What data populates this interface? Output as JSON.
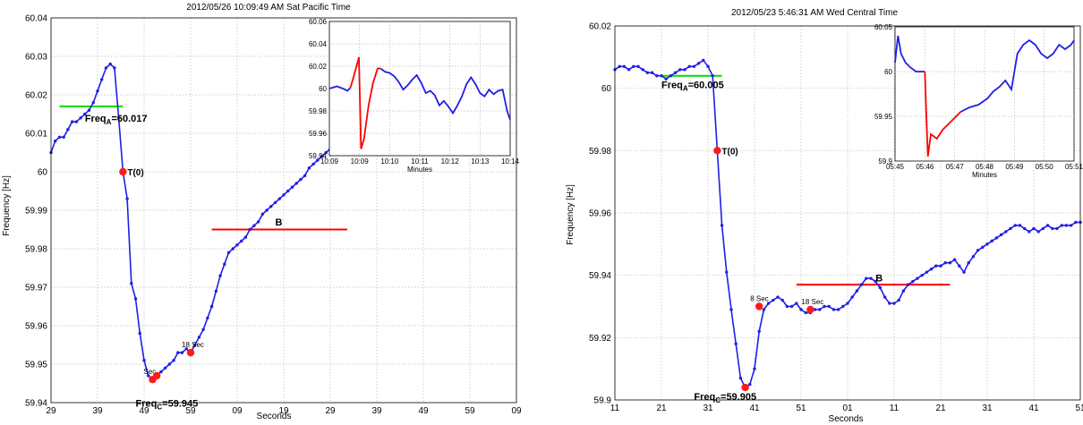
{
  "chart_data": [
    {
      "type": "line",
      "title": "2012/05/26 10:09:49 AM Sat Pacific Time",
      "xlabel": "Seconds",
      "ylabel": "Frequency [Hz]",
      "ylim": [
        59.94,
        60.04
      ],
      "yticks": [
        "59.94",
        "59.95",
        "59.96",
        "59.97",
        "59.98",
        "59.99",
        "60",
        "60.01",
        "60.02",
        "60.03",
        "60.04"
      ],
      "xlim": [
        0,
        110
      ],
      "xticks": [
        "29",
        "39",
        "49",
        "59",
        "09",
        "19",
        "29",
        "39",
        "49",
        "59",
        "09"
      ],
      "grid": true,
      "series": [
        {
          "color": "#1f1fe6",
          "x": [
            0,
            1,
            2,
            3,
            4,
            5,
            6,
            7,
            8,
            9,
            10,
            11,
            12,
            13,
            14,
            15,
            16,
            17,
            18,
            19,
            20,
            21,
            22,
            23,
            24,
            25,
            26,
            27,
            28,
            29,
            30,
            31,
            32,
            33,
            34,
            35,
            36,
            37,
            38,
            39,
            40,
            41,
            42,
            43,
            44,
            45,
            46,
            47,
            48,
            49,
            50,
            51,
            52,
            53,
            54,
            55,
            56,
            57,
            58,
            59,
            60,
            61,
            62,
            63,
            64,
            65,
            66,
            67,
            68,
            69,
            70,
            71,
            72,
            73,
            74,
            75
          ],
          "y": [
            60.005,
            60.008,
            60.009,
            60.009,
            60.011,
            60.013,
            60.013,
            60.014,
            60.015,
            60.016,
            60.018,
            60.021,
            60.024,
            60.027,
            60.028,
            60.027,
            60.014,
            60.0,
            59.993,
            59.971,
            59.967,
            59.958,
            59.951,
            59.947,
            59.946,
            59.947,
            59.948,
            59.949,
            59.95,
            59.951,
            59.953,
            59.953,
            59.954,
            59.953,
            59.955,
            59.957,
            59.959,
            59.962,
            59.965,
            59.969,
            59.973,
            59.976,
            59.979,
            59.98,
            59.981,
            59.982,
            59.983,
            59.985,
            59.986,
            59.987,
            59.989,
            59.99,
            59.991,
            59.992,
            59.993,
            59.994,
            59.995,
            59.996,
            59.997,
            59.998,
            59.999,
            60.001,
            60.002,
            60.003,
            60.004,
            60.005,
            60.006,
            60.007,
            60.007,
            60.008,
            60.008,
            60.009,
            60.009,
            60.01,
            60.01,
            60.011
          ]
        }
      ],
      "hlines": [
        {
          "color": "#00dd00",
          "y": 60.017,
          "x0": 2,
          "x1": 17
        },
        {
          "color": "#ff0000",
          "y": 59.985,
          "x0": 38,
          "x1": 70
        }
      ],
      "points": [
        {
          "x": 17,
          "y": 60.0,
          "label": "T(0)"
        },
        {
          "x": 24,
          "y": 59.946,
          "label": "Sec"
        },
        {
          "x": 25,
          "y": 59.947,
          "label": ""
        },
        {
          "x": 33,
          "y": 59.953,
          "label": "18 Sec"
        }
      ],
      "annotations": [
        {
          "x": 8,
          "y": 60.013,
          "label": "Freq",
          "sub": "A",
          "value": "=60.017"
        },
        {
          "x": 20,
          "y": 59.939,
          "label": "Freq",
          "sub": "C",
          "value": "=59.945"
        },
        {
          "x": 53,
          "y": 59.986,
          "label": "B",
          "sub": "",
          "value": ""
        }
      ],
      "inset": {
        "xlabel": "Minutes",
        "xticks": [
          "10:09",
          "10:09",
          "10:10",
          "10:11",
          "10:12",
          "10:13",
          "10:14"
        ],
        "ylim": [
          59.94,
          60.06
        ],
        "yticks": [
          "59.94",
          "59.96",
          "59.98",
          "60",
          "60.02",
          "60.04",
          "60.06"
        ],
        "series": [
          {
            "color": "#1f1fe6",
            "x": [
              0,
              0.25,
              0.45,
              0.6,
              0.7
            ],
            "y": [
              60.0,
              60.002,
              60.0,
              59.998,
              60.001
            ]
          },
          {
            "color": "#ff0000",
            "x": [
              0.7,
              0.8,
              0.9,
              0.98,
              1.05,
              1.15,
              1.3,
              1.45,
              1.6,
              1.7
            ],
            "y": [
              60.001,
              60.01,
              60.02,
              60.028,
              59.946,
              59.955,
              59.985,
              60.005,
              60.018,
              60.018
            ]
          },
          {
            "color": "#1f1fe6",
            "x": [
              1.7,
              1.85,
              2.0,
              2.15,
              2.3,
              2.45,
              2.6,
              2.75,
              2.9,
              3.05,
              3.2,
              3.35,
              3.5,
              3.65,
              3.8,
              3.95,
              4.1,
              4.25,
              4.4,
              4.55,
              4.7,
              4.85,
              5.0,
              5.15,
              5.3,
              5.45,
              5.6,
              5.75,
              5.9,
              6.0
            ],
            "y": [
              60.018,
              60.015,
              60.014,
              60.011,
              60.006,
              59.999,
              60.003,
              60.008,
              60.012,
              60.005,
              59.996,
              59.998,
              59.994,
              59.985,
              59.989,
              59.984,
              59.978,
              59.985,
              59.993,
              60.004,
              60.01,
              60.004,
              59.996,
              59.993,
              59.999,
              59.995,
              59.998,
              59.999,
              59.98,
              59.972
            ]
          }
        ]
      }
    },
    {
      "type": "line",
      "title": "2012/05/23  5:46:31 AM Wed Central Time",
      "xlabel": "Seconds",
      "ylabel": "Frequency [Hz]",
      "ylim": [
        59.9,
        60.02
      ],
      "yticks": [
        "59.9",
        "59.92",
        "59.94",
        "59.96",
        "59.98",
        "60",
        "60.02"
      ],
      "xlim": [
        0,
        100
      ],
      "xticks": [
        "11",
        "21",
        "31",
        "41",
        "51",
        "01",
        "11",
        "21",
        "31",
        "41",
        "51"
      ],
      "grid": true,
      "series": [
        {
          "color": "#1f1fe6",
          "x": [
            0,
            1,
            2,
            3,
            4,
            5,
            6,
            7,
            8,
            9,
            10,
            11,
            12,
            13,
            14,
            15,
            16,
            17,
            18,
            19,
            20,
            21,
            22,
            23,
            24,
            25,
            26,
            27,
            28,
            29,
            30,
            31,
            32,
            33,
            34,
            35,
            36,
            37,
            38,
            39,
            40,
            41,
            42,
            43,
            44,
            45,
            46,
            47,
            48,
            49,
            50,
            51,
            52,
            53,
            54,
            55,
            56,
            57,
            58,
            59,
            60,
            61,
            62,
            63,
            64,
            65,
            66,
            67,
            68,
            69,
            70,
            71,
            72,
            73,
            74,
            75,
            76,
            77,
            78,
            79,
            80,
            81,
            82,
            83,
            84,
            85,
            86,
            87,
            88,
            89,
            90,
            91,
            92,
            93,
            94,
            95,
            96,
            97,
            98,
            99,
            100
          ],
          "y": [
            60.006,
            60.007,
            60.007,
            60.006,
            60.007,
            60.007,
            60.006,
            60.005,
            60.005,
            60.004,
            60.004,
            60.003,
            60.004,
            60.005,
            60.006,
            60.006,
            60.007,
            60.007,
            60.008,
            60.009,
            60.007,
            60.004,
            59.98,
            59.956,
            59.941,
            59.929,
            59.918,
            59.907,
            59.904,
            59.905,
            59.91,
            59.922,
            59.929,
            59.931,
            59.932,
            59.933,
            59.932,
            59.93,
            59.93,
            59.931,
            59.929,
            59.928,
            59.928,
            59.929,
            59.929,
            59.93,
            59.93,
            59.929,
            59.929,
            59.93,
            59.931,
            59.933,
            59.935,
            59.937,
            59.939,
            59.939,
            59.938,
            59.936,
            59.933,
            59.931,
            59.931,
            59.932,
            59.935,
            59.937,
            59.938,
            59.939,
            59.94,
            59.941,
            59.942,
            59.943,
            59.943,
            59.944,
            59.944,
            59.945,
            59.943,
            59.941,
            59.944,
            59.946,
            59.948,
            59.949,
            59.95,
            59.951,
            59.952,
            59.953,
            59.954,
            59.955,
            59.956,
            59.956,
            59.955,
            59.954,
            59.955,
            59.954,
            59.955,
            59.956,
            59.955,
            59.955,
            59.956,
            59.956,
            59.956,
            59.957,
            59.957
          ]
        }
      ],
      "hlines": [
        {
          "color": "#00dd00",
          "y": 60.004,
          "x0": 10,
          "x1": 23
        },
        {
          "color": "#ff0000",
          "y": 59.937,
          "x0": 39,
          "x1": 72
        }
      ],
      "points": [
        {
          "x": 22,
          "y": 59.98,
          "label": "T(0)"
        },
        {
          "x": 28,
          "y": 59.904,
          "label": ""
        },
        {
          "x": 31,
          "y": 59.93,
          "label": "8 Sec"
        },
        {
          "x": 42,
          "y": 59.929,
          "label": "18 Sec"
        }
      ],
      "annotations": [
        {
          "x": 10,
          "y": 60.0,
          "label": "Freq",
          "sub": "A",
          "value": "=60.005"
        },
        {
          "x": 17,
          "y": 59.9,
          "label": "Freq",
          "sub": "C",
          "value": "=59.905"
        },
        {
          "x": 56,
          "y": 59.938,
          "label": "B",
          "sub": "",
          "value": ""
        }
      ],
      "inset": {
        "xlabel": "Minutes",
        "xticks": [
          "05:45",
          "05:46",
          "05:47",
          "05:48",
          "05:49",
          "05:50",
          "05:51"
        ],
        "ylim": [
          59.9,
          60.05
        ],
        "yticks": [
          "59.9",
          "59.95",
          "60",
          "60.05"
        ],
        "series": [
          {
            "color": "#1f1fe6",
            "x": [
              0,
              0.1,
              0.2,
              0.35,
              0.5,
              0.7,
              0.85,
              1.0
            ],
            "y": [
              60.01,
              60.04,
              60.02,
              60.01,
              60.005,
              60.0,
              60.0,
              60.0
            ]
          },
          {
            "color": "#ff0000",
            "x": [
              1.0,
              1.05,
              1.1,
              1.2,
              1.4,
              1.6,
              1.9,
              2.2
            ],
            "y": [
              60.0,
              59.95,
              59.905,
              59.93,
              59.925,
              59.935,
              59.945,
              59.955
            ]
          },
          {
            "color": "#1f1fe6",
            "x": [
              2.2,
              2.5,
              2.8,
              3.1,
              3.3,
              3.5,
              3.7,
              3.9,
              4.1,
              4.3,
              4.5,
              4.7,
              4.9,
              5.1,
              5.3,
              5.5,
              5.7,
              5.9,
              6.0
            ],
            "y": [
              59.955,
              59.96,
              59.963,
              59.97,
              59.978,
              59.983,
              59.99,
              59.98,
              60.02,
              60.03,
              60.035,
              60.03,
              60.02,
              60.015,
              60.02,
              60.03,
              60.025,
              60.03,
              60.035
            ]
          }
        ]
      }
    }
  ]
}
